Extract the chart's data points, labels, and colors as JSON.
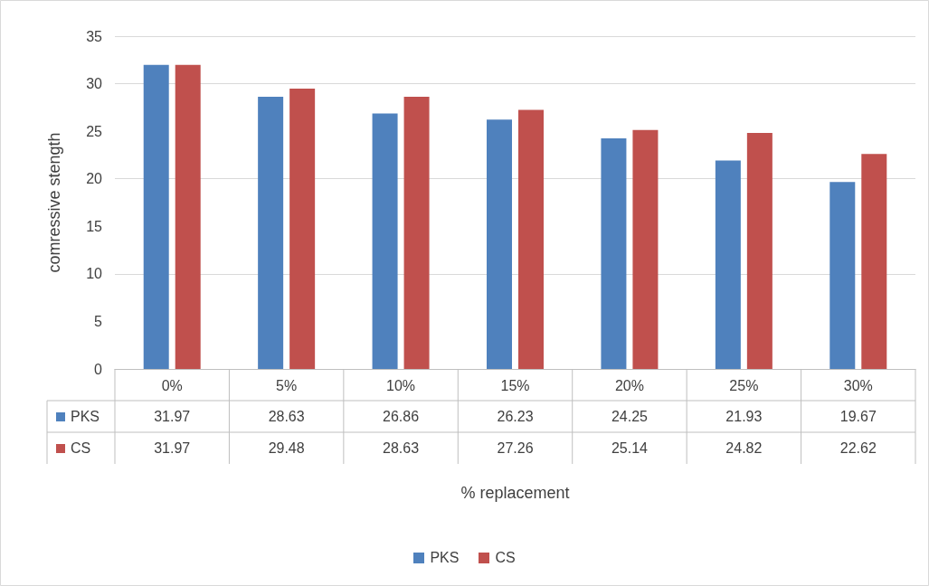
{
  "chart_data": {
    "type": "bar",
    "annotations": [
      "% replacement"
    ],
    "ylabel": "comressive stength",
    "categories": [
      "0%",
      "5%",
      "10%",
      "15%",
      "20%",
      "25%",
      "30%"
    ],
    "series": [
      {
        "name": "PKS",
        "color": "#4f81bd",
        "values": [
          31.97,
          28.63,
          26.86,
          26.23,
          24.25,
          21.93,
          19.67
        ]
      },
      {
        "name": "CS",
        "color": "#c0504d",
        "values": [
          31.97,
          29.48,
          28.63,
          27.26,
          25.14,
          24.82,
          22.62
        ]
      }
    ],
    "ylim": [
      0,
      35
    ],
    "yticks": [
      0,
      5,
      10,
      15,
      20,
      25,
      30,
      35
    ],
    "grid": "y",
    "legend": "bottom",
    "data_labels": true
  }
}
